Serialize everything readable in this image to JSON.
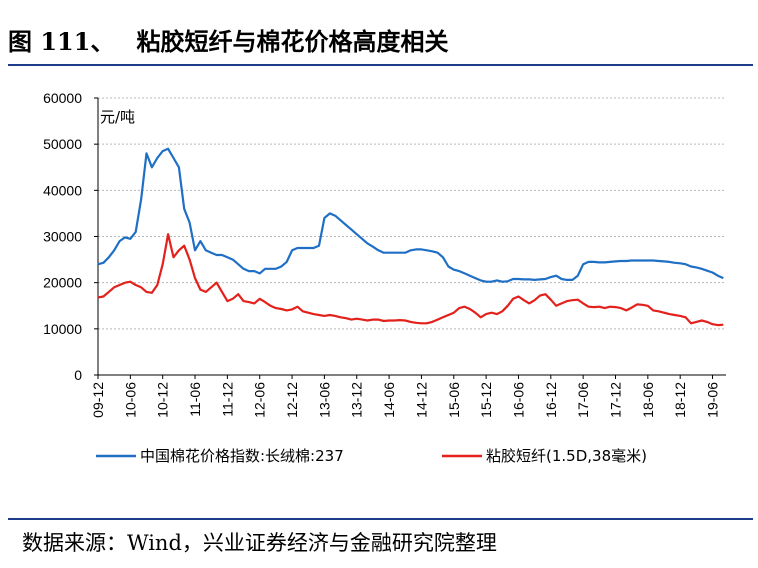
{
  "figure": {
    "label": "图 111、",
    "title": "粘胶短纤与棉花价格高度相关"
  },
  "source": "数据来源：Wind，兴业证券经济与金融研究院整理",
  "chart_data": {
    "type": "line",
    "title": "粘胶短纤与棉花价格高度相关",
    "unit_label": "元/吨",
    "ylim": [
      0,
      60000
    ],
    "yticks": [
      "0",
      "10000",
      "20000",
      "30000",
      "40000",
      "50000",
      "60000"
    ],
    "xtick_labels": [
      "09-12",
      "10-06",
      "10-12",
      "11-06",
      "11-12",
      "12-06",
      "12-12",
      "13-06",
      "13-12",
      "14-06",
      "14-12",
      "15-06",
      "15-12",
      "16-06",
      "16-12",
      "17-06",
      "17-12",
      "18-06",
      "18-12",
      "19-06"
    ],
    "legend_position": "bottom",
    "grid": "horizontal dashed",
    "series": [
      {
        "name": "中国棉花价格指数:长绒棉:237",
        "color": "#1f6fc5",
        "points": [
          [
            "09-12",
            24000
          ],
          [
            "10-01",
            24300
          ],
          [
            "10-02",
            25500
          ],
          [
            "10-03",
            27000
          ],
          [
            "10-04",
            29000
          ],
          [
            "10-05",
            29800
          ],
          [
            "10-06",
            29500
          ],
          [
            "10-07",
            31000
          ],
          [
            "10-08",
            38000
          ],
          [
            "10-09",
            48000
          ],
          [
            "10-10",
            45000
          ],
          [
            "10-11",
            47000
          ],
          [
            "10-12",
            48500
          ],
          [
            "11-01",
            49000
          ],
          [
            "11-02",
            47000
          ],
          [
            "11-03",
            45000
          ],
          [
            "11-04",
            36000
          ],
          [
            "11-05",
            33000
          ],
          [
            "11-06",
            27000
          ],
          [
            "11-07",
            29000
          ],
          [
            "11-08",
            27000
          ],
          [
            "11-09",
            26500
          ],
          [
            "11-10",
            26000
          ],
          [
            "11-11",
            26000
          ],
          [
            "11-12",
            25500
          ],
          [
            "12-01",
            25000
          ],
          [
            "12-02",
            24000
          ],
          [
            "12-03",
            23000
          ],
          [
            "12-04",
            22500
          ],
          [
            "12-05",
            22500
          ],
          [
            "12-06",
            22000
          ],
          [
            "12-07",
            23000
          ],
          [
            "12-08",
            23000
          ],
          [
            "12-09",
            23000
          ],
          [
            "12-10",
            23500
          ],
          [
            "12-11",
            24500
          ],
          [
            "12-12",
            27000
          ],
          [
            "13-01",
            27500
          ],
          [
            "13-02",
            27500
          ],
          [
            "13-03",
            27500
          ],
          [
            "13-04",
            27500
          ],
          [
            "13-05",
            28000
          ],
          [
            "13-06",
            34000
          ],
          [
            "13-07",
            35000
          ],
          [
            "13-08",
            34500
          ],
          [
            "13-09",
            33500
          ],
          [
            "13-10",
            32500
          ],
          [
            "13-11",
            31500
          ],
          [
            "13-12",
            30500
          ],
          [
            "14-01",
            29500
          ],
          [
            "14-02",
            28500
          ],
          [
            "14-03",
            27800
          ],
          [
            "14-04",
            27000
          ],
          [
            "14-05",
            26500
          ],
          [
            "14-06",
            26500
          ],
          [
            "14-07",
            26500
          ],
          [
            "14-08",
            26500
          ],
          [
            "14-09",
            26500
          ],
          [
            "14-10",
            27000
          ],
          [
            "14-11",
            27200
          ],
          [
            "14-12",
            27200
          ],
          [
            "15-01",
            27000
          ],
          [
            "15-02",
            26800
          ],
          [
            "15-03",
            26500
          ],
          [
            "15-04",
            25500
          ],
          [
            "15-05",
            23500
          ],
          [
            "15-06",
            22800
          ],
          [
            "15-07",
            22500
          ],
          [
            "15-08",
            22000
          ],
          [
            "15-09",
            21500
          ],
          [
            "15-10",
            21000
          ],
          [
            "15-11",
            20500
          ],
          [
            "15-12",
            20200
          ],
          [
            "16-01",
            20200
          ],
          [
            "16-02",
            20500
          ],
          [
            "16-03",
            20200
          ],
          [
            "16-04",
            20300
          ],
          [
            "16-05",
            20800
          ],
          [
            "16-06",
            20800
          ],
          [
            "16-07",
            20700
          ],
          [
            "16-08",
            20700
          ],
          [
            "16-09",
            20600
          ],
          [
            "16-10",
            20700
          ],
          [
            "16-11",
            20800
          ],
          [
            "16-12",
            21200
          ],
          [
            "17-01",
            21500
          ],
          [
            "17-02",
            20800
          ],
          [
            "17-03",
            20600
          ],
          [
            "17-04",
            20600
          ],
          [
            "17-05",
            21500
          ],
          [
            "17-06",
            24000
          ],
          [
            "17-07",
            24500
          ],
          [
            "17-08",
            24500
          ],
          [
            "17-09",
            24400
          ],
          [
            "17-10",
            24400
          ],
          [
            "17-11",
            24500
          ],
          [
            "17-12",
            24600
          ],
          [
            "18-01",
            24700
          ],
          [
            "18-02",
            24700
          ],
          [
            "18-03",
            24800
          ],
          [
            "18-04",
            24800
          ],
          [
            "18-05",
            24800
          ],
          [
            "18-06",
            24800
          ],
          [
            "18-07",
            24800
          ],
          [
            "18-08",
            24700
          ],
          [
            "18-09",
            24600
          ],
          [
            "18-10",
            24500
          ],
          [
            "18-11",
            24300
          ],
          [
            "18-12",
            24200
          ],
          [
            "19-01",
            24000
          ],
          [
            "19-02",
            23500
          ],
          [
            "19-03",
            23300
          ],
          [
            "19-04",
            23000
          ],
          [
            "19-05",
            22600
          ],
          [
            "19-06",
            22200
          ],
          [
            "19-07",
            21500
          ],
          [
            "19-08",
            21000
          ]
        ]
      },
      {
        "name": "粘胶短纤(1.5D,38毫米)",
        "color": "#e3201b",
        "points": [
          [
            "09-12",
            16800
          ],
          [
            "10-01",
            17000
          ],
          [
            "10-02",
            18000
          ],
          [
            "10-03",
            19000
          ],
          [
            "10-04",
            19500
          ],
          [
            "10-05",
            20000
          ],
          [
            "10-06",
            20200
          ],
          [
            "10-07",
            19500
          ],
          [
            "10-08",
            19000
          ],
          [
            "10-09",
            18000
          ],
          [
            "10-10",
            17800
          ],
          [
            "10-11",
            19500
          ],
          [
            "10-12",
            24000
          ],
          [
            "11-01",
            30500
          ],
          [
            "11-02",
            25500
          ],
          [
            "11-03",
            27000
          ],
          [
            "11-04",
            28000
          ],
          [
            "11-05",
            25000
          ],
          [
            "11-06",
            21000
          ],
          [
            "11-07",
            18500
          ],
          [
            "11-08",
            18000
          ],
          [
            "11-09",
            19000
          ],
          [
            "11-10",
            20000
          ],
          [
            "11-11",
            18000
          ],
          [
            "11-12",
            16000
          ],
          [
            "12-01",
            16500
          ],
          [
            "12-02",
            17500
          ],
          [
            "12-03",
            16000
          ],
          [
            "12-04",
            15800
          ],
          [
            "12-05",
            15500
          ],
          [
            "12-06",
            16500
          ],
          [
            "12-07",
            15800
          ],
          [
            "12-08",
            15000
          ],
          [
            "12-09",
            14500
          ],
          [
            "12-10",
            14300
          ],
          [
            "12-11",
            14000
          ],
          [
            "12-12",
            14200
          ],
          [
            "13-01",
            14800
          ],
          [
            "13-02",
            13800
          ],
          [
            "13-03",
            13500
          ],
          [
            "13-04",
            13200
          ],
          [
            "13-05",
            13000
          ],
          [
            "13-06",
            12800
          ],
          [
            "13-07",
            13000
          ],
          [
            "13-08",
            12800
          ],
          [
            "13-09",
            12500
          ],
          [
            "13-10",
            12300
          ],
          [
            "13-11",
            12000
          ],
          [
            "13-12",
            12200
          ],
          [
            "14-01",
            12000
          ],
          [
            "14-02",
            11800
          ],
          [
            "14-03",
            12000
          ],
          [
            "14-04",
            12000
          ],
          [
            "14-05",
            11700
          ],
          [
            "14-06",
            11800
          ],
          [
            "14-07",
            11800
          ],
          [
            "14-08",
            11900
          ],
          [
            "14-09",
            11800
          ],
          [
            "14-10",
            11500
          ],
          [
            "14-11",
            11300
          ],
          [
            "14-12",
            11200
          ],
          [
            "15-01",
            11200
          ],
          [
            "15-02",
            11500
          ],
          [
            "15-03",
            12000
          ],
          [
            "15-04",
            12500
          ],
          [
            "15-05",
            13000
          ],
          [
            "15-06",
            13500
          ],
          [
            "15-07",
            14500
          ],
          [
            "15-08",
            14800
          ],
          [
            "15-09",
            14300
          ],
          [
            "15-10",
            13500
          ],
          [
            "15-11",
            12500
          ],
          [
            "15-12",
            13200
          ],
          [
            "16-01",
            13500
          ],
          [
            "16-02",
            13200
          ],
          [
            "16-03",
            13800
          ],
          [
            "16-04",
            15000
          ],
          [
            "16-05",
            16500
          ],
          [
            "16-06",
            17000
          ],
          [
            "16-07",
            16200
          ],
          [
            "16-08",
            15500
          ],
          [
            "16-09",
            16200
          ],
          [
            "16-10",
            17200
          ],
          [
            "16-11",
            17500
          ],
          [
            "16-12",
            16300
          ],
          [
            "17-01",
            15000
          ],
          [
            "17-02",
            15500
          ],
          [
            "17-03",
            16000
          ],
          [
            "17-04",
            16200
          ],
          [
            "17-05",
            16300
          ],
          [
            "17-06",
            15500
          ],
          [
            "17-07",
            14800
          ],
          [
            "17-08",
            14700
          ],
          [
            "17-09",
            14800
          ],
          [
            "17-10",
            14500
          ],
          [
            "17-11",
            14800
          ],
          [
            "17-12",
            14700
          ],
          [
            "18-01",
            14500
          ],
          [
            "18-02",
            14000
          ],
          [
            "18-03",
            14600
          ],
          [
            "18-04",
            15300
          ],
          [
            "18-05",
            15200
          ],
          [
            "18-06",
            15000
          ],
          [
            "18-07",
            14000
          ],
          [
            "18-08",
            13800
          ],
          [
            "18-09",
            13500
          ],
          [
            "18-10",
            13200
          ],
          [
            "18-11",
            13000
          ],
          [
            "18-12",
            12800
          ],
          [
            "19-01",
            12500
          ],
          [
            "19-02",
            11200
          ],
          [
            "19-03",
            11500
          ],
          [
            "19-04",
            11800
          ],
          [
            "19-05",
            11500
          ],
          [
            "19-06",
            11000
          ],
          [
            "19-07",
            10800
          ],
          [
            "19-08",
            10900
          ]
        ]
      }
    ]
  }
}
